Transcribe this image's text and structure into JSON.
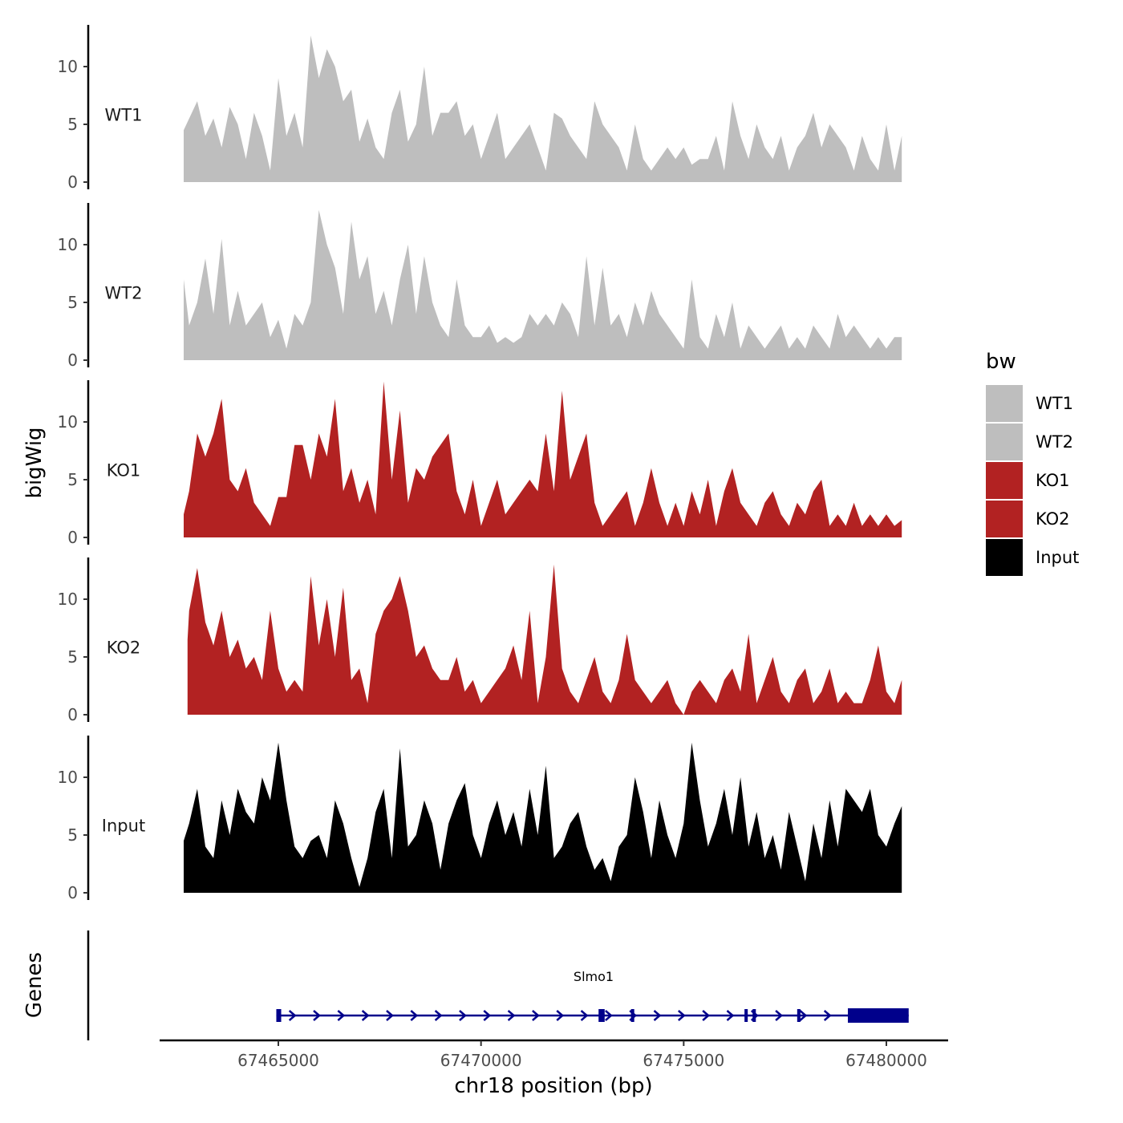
{
  "chart_data": {
    "type": "area",
    "title": "",
    "xlabel": "chr18 position (bp)",
    "ylabel": "bigWig",
    "genes_label": "Genes",
    "xlim": [
      67462000,
      67481000
    ],
    "ylim": [
      0,
      13.5
    ],
    "x_ticks": [
      67465000,
      67470000,
      67475000,
      67480000
    ],
    "x_tick_labels": [
      "67465000",
      "67470000",
      "67475000",
      "67480000"
    ],
    "y_ticks": [
      0,
      5,
      10
    ],
    "y_tick_labels": [
      "0",
      "5",
      "10"
    ],
    "grid": false,
    "legend": {
      "title": "bw",
      "position": "right",
      "entries": [
        {
          "label": "WT1",
          "color": "#bebebe"
        },
        {
          "label": "WT2",
          "color": "#bebebe"
        },
        {
          "label": "KO1",
          "color": "#b22222"
        },
        {
          "label": "KO2",
          "color": "#b22222"
        },
        {
          "label": "Input",
          "color": "#000000"
        }
      ]
    },
    "series": [
      {
        "name": "WT1",
        "color": "#bebebe",
        "x": [
          67462665,
          67462800,
          67463000,
          67463200,
          67463400,
          67463600,
          67463800,
          67464000,
          67464200,
          67464400,
          67464600,
          67464800,
          67465000,
          67465200,
          67465400,
          67465600,
          67465800,
          67466000,
          67466200,
          67466400,
          67466600,
          67466800,
          67467000,
          67467200,
          67467400,
          67467600,
          67467800,
          67468000,
          67468200,
          67468400,
          67468600,
          67468800,
          67469000,
          67469200,
          67469400,
          67469600,
          67469800,
          67470000,
          67470200,
          67470400,
          67470600,
          67470800,
          67471000,
          67471200,
          67471400,
          67471600,
          67471800,
          67472000,
          67472200,
          67472400,
          67472600,
          67472800,
          67473000,
          67473200,
          67473400,
          67473600,
          67473800,
          67474000,
          67474200,
          67474400,
          67474600,
          67474800,
          67475000,
          67475200,
          67475400,
          67475600,
          67475800,
          67476000,
          67476200,
          67476400,
          67476600,
          67476800,
          67477000,
          67477200,
          67477400,
          67477600,
          67477800,
          67478000,
          67478200,
          67478400,
          67478600,
          67478800,
          67479000,
          67479200,
          67479400,
          67479600,
          67479800,
          67480000,
          67480200,
          67480380
        ],
        "values": [
          4.5,
          5.5,
          7,
          4,
          5.5,
          3,
          6.5,
          5,
          2,
          6,
          4,
          1,
          9,
          4,
          6,
          3,
          12.7,
          9,
          11.5,
          10,
          7,
          8,
          3.5,
          5.5,
          3,
          2,
          6,
          8,
          3.5,
          5,
          10,
          4,
          6,
          6,
          7,
          4,
          5,
          2,
          4,
          6,
          2,
          3,
          4,
          5,
          3,
          1,
          6,
          5.5,
          4,
          3,
          2,
          7,
          5,
          4,
          3,
          1,
          5,
          2,
          1,
          2,
          3,
          2,
          3,
          1.5,
          2,
          2,
          4,
          1,
          7,
          4,
          2,
          5,
          3,
          2,
          4,
          1,
          3,
          4,
          6,
          3,
          5,
          4,
          3,
          1,
          4,
          2,
          1,
          5,
          1,
          4
        ],
        "label_y": 5.8
      },
      {
        "name": "WT2",
        "color": "#bebebe",
        "x": [
          67462665,
          67462800,
          67463000,
          67463200,
          67463400,
          67463600,
          67463800,
          67464000,
          67464200,
          67464400,
          67464600,
          67464800,
          67465000,
          67465200,
          67465400,
          67465600,
          67465800,
          67466000,
          67466200,
          67466400,
          67466600,
          67466800,
          67467000,
          67467200,
          67467400,
          67467600,
          67467800,
          67468000,
          67468200,
          67468400,
          67468600,
          67468800,
          67469000,
          67469200,
          67469400,
          67469600,
          67469800,
          67470000,
          67470200,
          67470400,
          67470600,
          67470800,
          67471000,
          67471200,
          67471400,
          67471600,
          67471800,
          67472000,
          67472200,
          67472400,
          67472600,
          67472800,
          67473000,
          67473200,
          67473400,
          67473600,
          67473800,
          67474000,
          67474200,
          67474400,
          67474600,
          67474800,
          67475000,
          67475200,
          67475400,
          67475600,
          67475800,
          67476000,
          67476200,
          67476400,
          67476600,
          67476800,
          67477000,
          67477200,
          67477400,
          67477600,
          67477800,
          67478000,
          67478200,
          67478400,
          67478600,
          67478800,
          67479000,
          67479200,
          67479400,
          67479600,
          67479800,
          67480000,
          67480200,
          67480380
        ],
        "values": [
          7,
          3,
          5,
          8.8,
          4,
          10.5,
          3,
          6,
          3,
          4,
          5,
          2,
          3.5,
          1,
          4,
          3,
          5,
          13,
          10,
          8,
          4,
          12,
          7,
          9,
          4,
          6,
          3,
          7,
          10,
          4,
          9,
          5,
          3,
          2,
          7,
          3,
          2,
          2,
          3,
          1.5,
          2,
          1.5,
          2,
          4,
          3,
          4,
          3,
          5,
          4,
          2,
          9,
          3,
          8,
          3,
          4,
          2,
          5,
          3,
          6,
          4,
          3,
          2,
          1,
          7,
          2,
          1,
          4,
          2,
          5,
          1,
          3,
          2,
          1,
          2,
          3,
          1,
          2,
          1,
          3,
          2,
          1,
          4,
          2,
          3,
          2,
          1,
          2,
          1,
          2,
          2
        ],
        "label_y": 5.8
      },
      {
        "name": "KO1",
        "color": "#b22222",
        "x": [
          67462665,
          67462800,
          67463000,
          67463200,
          67463400,
          67463600,
          67463800,
          67464000,
          67464200,
          67464400,
          67464600,
          67464800,
          67465000,
          67465200,
          67465400,
          67465600,
          67465800,
          67466000,
          67466200,
          67466400,
          67466600,
          67466800,
          67467000,
          67467200,
          67467400,
          67467600,
          67467800,
          67468000,
          67468200,
          67468400,
          67468600,
          67468800,
          67469000,
          67469200,
          67469400,
          67469600,
          67469800,
          67470000,
          67470200,
          67470400,
          67470600,
          67470800,
          67471000,
          67471200,
          67471400,
          67471600,
          67471800,
          67472000,
          67472200,
          67472400,
          67472600,
          67472800,
          67473000,
          67473200,
          67473400,
          67473600,
          67473800,
          67474000,
          67474200,
          67474400,
          67474600,
          67474800,
          67475000,
          67475200,
          67475400,
          67475600,
          67475800,
          67476000,
          67476200,
          67476400,
          67476600,
          67476800,
          67477000,
          67477200,
          67477400,
          67477600,
          67477800,
          67478000,
          67478200,
          67478400,
          67478600,
          67478800,
          67479000,
          67479200,
          67479400,
          67479600,
          67479800,
          67480000,
          67480200,
          67480380
        ],
        "values": [
          2,
          4,
          9,
          7,
          9,
          12,
          5,
          4,
          6,
          3,
          2,
          1,
          3.5,
          3.5,
          8,
          8,
          5,
          9,
          7,
          12,
          4,
          6,
          3,
          5,
          2,
          13.5,
          5,
          11,
          3,
          6,
          5,
          7,
          8,
          9,
          4,
          2,
          5,
          1,
          3,
          5,
          2,
          3,
          4,
          5,
          4,
          9,
          4,
          12.7,
          5,
          7,
          9,
          3,
          1,
          2,
          3,
          4,
          1,
          3,
          6,
          3,
          1,
          3,
          1,
          4,
          2,
          5,
          1,
          4,
          6,
          3,
          2,
          1,
          3,
          4,
          2,
          1,
          3,
          2,
          4,
          5,
          1,
          2,
          1,
          3,
          1,
          2,
          1,
          2,
          1,
          1.5
        ],
        "label_y": 5.8
      },
      {
        "name": "KO2",
        "color": "#b22222",
        "x": [
          67462760,
          67462800,
          67463000,
          67463200,
          67463400,
          67463600,
          67463800,
          67464000,
          67464200,
          67464400,
          67464600,
          67464800,
          67465000,
          67465200,
          67465400,
          67465600,
          67465800,
          67466000,
          67466200,
          67466400,
          67466600,
          67466800,
          67467000,
          67467200,
          67467400,
          67467600,
          67467800,
          67468000,
          67468200,
          67468400,
          67468600,
          67468800,
          67469000,
          67469200,
          67469400,
          67469600,
          67469800,
          67470000,
          67470200,
          67470400,
          67470600,
          67470800,
          67471000,
          67471200,
          67471400,
          67471600,
          67471800,
          67472000,
          67472200,
          67472400,
          67472600,
          67472800,
          67473000,
          67473200,
          67473400,
          67473600,
          67473800,
          67474000,
          67474200,
          67474400,
          67474600,
          67474800,
          67475000,
          67475200,
          67475400,
          67475600,
          67475800,
          67476000,
          67476200,
          67476400,
          67476600,
          67476800,
          67477000,
          67477200,
          67477400,
          67477600,
          67477800,
          67478000,
          67478200,
          67478400,
          67478600,
          67478800,
          67479000,
          67479200,
          67479400,
          67479600,
          67479800,
          67480000,
          67480200,
          67480380
        ],
        "values": [
          6.5,
          9,
          12.7,
          8,
          6,
          9,
          5,
          6.5,
          4,
          5,
          3,
          9,
          4,
          2,
          3,
          2,
          12,
          6,
          10,
          5,
          11,
          3,
          4,
          1,
          7,
          9,
          10,
          12,
          9,
          5,
          6,
          4,
          3,
          3,
          5,
          2,
          3,
          1,
          2,
          3,
          4,
          6,
          3,
          9,
          1,
          5,
          13,
          4,
          2,
          1,
          3,
          5,
          2,
          1,
          3,
          7,
          3,
          2,
          1,
          2,
          3,
          1,
          0,
          2,
          3,
          2,
          1,
          3,
          4,
          2,
          7,
          1,
          3,
          5,
          2,
          1,
          3,
          4,
          1,
          2,
          4,
          1,
          2,
          1,
          1,
          3,
          6,
          2,
          1,
          3
        ],
        "label_y": 5.8
      },
      {
        "name": "Input",
        "color": "#000000",
        "x": [
          67462665,
          67462800,
          67463000,
          67463200,
          67463400,
          67463600,
          67463800,
          67464000,
          67464200,
          67464400,
          67464600,
          67464800,
          67465000,
          67465200,
          67465400,
          67465600,
          67465800,
          67466000,
          67466200,
          67466400,
          67466600,
          67466800,
          67467000,
          67467200,
          67467400,
          67467600,
          67467800,
          67468000,
          67468200,
          67468400,
          67468600,
          67468800,
          67469000,
          67469200,
          67469400,
          67469600,
          67469800,
          67470000,
          67470200,
          67470400,
          67470600,
          67470800,
          67471000,
          67471200,
          67471400,
          67471600,
          67471800,
          67472000,
          67472200,
          67472400,
          67472600,
          67472800,
          67473000,
          67473200,
          67473400,
          67473600,
          67473800,
          67474000,
          67474200,
          67474400,
          67474600,
          67474800,
          67475000,
          67475200,
          67475400,
          67475600,
          67475800,
          67476000,
          67476200,
          67476400,
          67476600,
          67476800,
          67477000,
          67477200,
          67477400,
          67477600,
          67477800,
          67478000,
          67478200,
          67478400,
          67478600,
          67478800,
          67479000,
          67479200,
          67479400,
          67479600,
          67479800,
          67480000,
          67480200,
          67480380
        ],
        "values": [
          4.5,
          6,
          9,
          4,
          3,
          8,
          5,
          9,
          7,
          6,
          10,
          8,
          13,
          8,
          4,
          3,
          4.5,
          5,
          3,
          8,
          6,
          3,
          0.5,
          3,
          7,
          9,
          3,
          12.5,
          4,
          5,
          8,
          6,
          2,
          6,
          8,
          9.5,
          5,
          3,
          6,
          8,
          5,
          7,
          4,
          9,
          5,
          11,
          3,
          4,
          6,
          7,
          4,
          2,
          3,
          1,
          4,
          5,
          10,
          7,
          3,
          8,
          5,
          3,
          6,
          13,
          8,
          4,
          6,
          9,
          5,
          10,
          4,
          7,
          3,
          5,
          2,
          7,
          4,
          1,
          6,
          3,
          8,
          4,
          9,
          8,
          7,
          9,
          5,
          4,
          6,
          7.5
        ],
        "label_y": 5.8
      }
    ],
    "gene_track": {
      "gene_name": "Slmo1",
      "strand": "+",
      "color": "#00008b",
      "intron_start": 67464950,
      "intron_end": 67480550,
      "exons": [
        [
          67464950,
          67465070
        ],
        [
          67472900,
          67473050
        ],
        [
          67473700,
          67473780
        ],
        [
          67476500,
          67476580
        ],
        [
          67476700,
          67476780
        ],
        [
          67477800,
          67477880
        ],
        [
          67479050,
          67480550
        ]
      ]
    }
  }
}
